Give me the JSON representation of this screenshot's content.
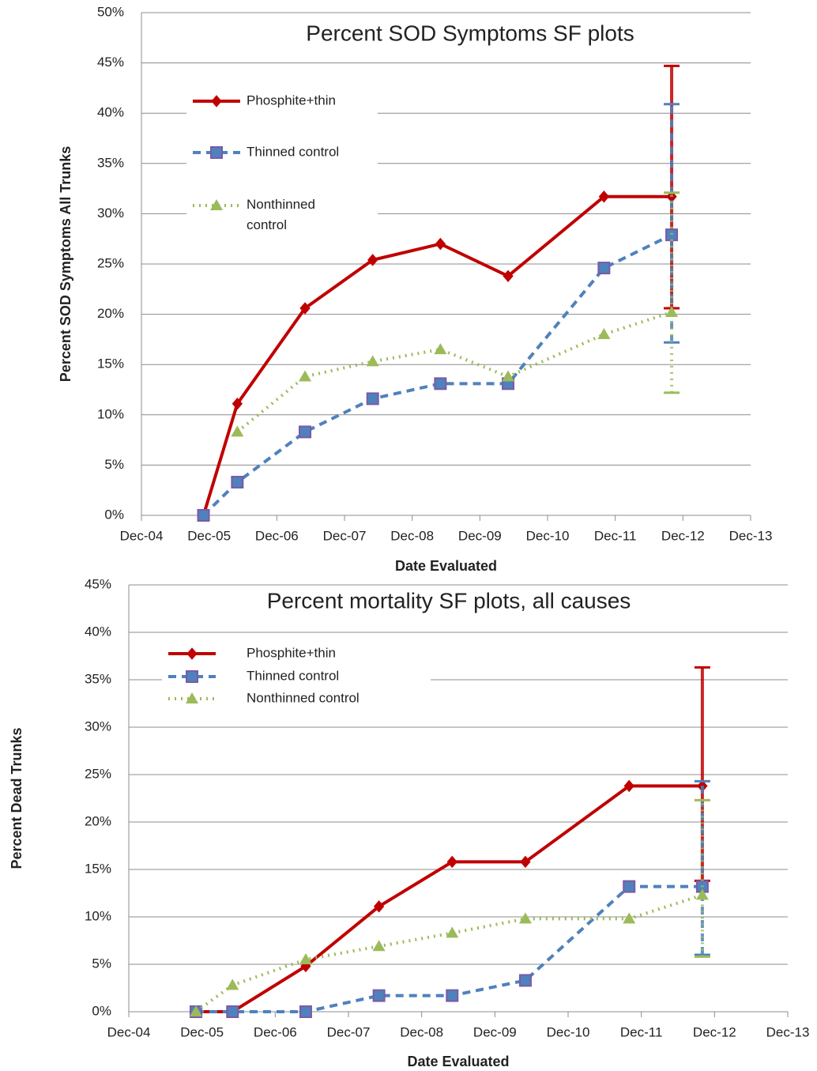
{
  "chart_data": [
    {
      "type": "line",
      "title": "Percent  SOD Symptoms SF plots",
      "x_label": "Date Evaluated",
      "y_label": "Percent SOD Symptoms  All Trunks",
      "x": [
        "2005-11",
        "2006-05",
        "2007-05",
        "2008-05",
        "2009-05",
        "2010-05",
        "2011-10",
        "2012-10"
      ],
      "series": [
        {
          "name": "Phosphite+thin",
          "color": "#c00000",
          "marker": "diamond",
          "dash": "solid",
          "values": [
            0,
            11.1,
            20.6,
            25.4,
            27.0,
            23.8,
            31.7,
            31.7
          ],
          "error_low": [
            null,
            null,
            null,
            null,
            null,
            null,
            null,
            20.6
          ],
          "error_high": [
            null,
            null,
            null,
            null,
            null,
            null,
            null,
            44.7
          ]
        },
        {
          "name": "Thinned control",
          "color": "#4f81bd",
          "marker": "square",
          "dash": "dash",
          "values": [
            0,
            3.3,
            8.3,
            11.6,
            13.1,
            13.1,
            24.6,
            27.9
          ],
          "error_low": [
            null,
            null,
            null,
            null,
            null,
            null,
            null,
            17.2
          ],
          "error_high": [
            null,
            null,
            null,
            null,
            null,
            null,
            null,
            40.9
          ]
        },
        {
          "name": "Nonthinned control",
          "color": "#9bbb59",
          "marker": "triangle",
          "dash": "dot",
          "values": [
            null,
            8.3,
            13.8,
            15.3,
            16.5,
            13.8,
            18.0,
            20.2
          ],
          "error_low": [
            null,
            null,
            null,
            null,
            null,
            null,
            null,
            12.2
          ],
          "error_high": [
            null,
            null,
            null,
            null,
            null,
            null,
            null,
            32.1
          ]
        }
      ],
      "xlim": [
        "2004-12",
        "2013-12"
      ],
      "xticks": [
        {
          "value": "2004-12",
          "label": "Dec-04"
        },
        {
          "value": "2005-12",
          "label": "Dec-05"
        },
        {
          "value": "2006-12",
          "label": "Dec-06"
        },
        {
          "value": "2007-12",
          "label": "Dec-07"
        },
        {
          "value": "2008-12",
          "label": "Dec-08"
        },
        {
          "value": "2009-12",
          "label": "Dec-09"
        },
        {
          "value": "2010-12",
          "label": "Dec-10"
        },
        {
          "value": "2011-12",
          "label": "Dec-11"
        },
        {
          "value": "2012-12",
          "label": "Dec-12"
        },
        {
          "value": "2013-12",
          "label": "Dec-13"
        }
      ],
      "ylim": [
        0,
        50
      ],
      "yticks": [
        {
          "value": 0,
          "label": "0%"
        },
        {
          "value": 5,
          "label": "5%"
        },
        {
          "value": 10,
          "label": "10%"
        },
        {
          "value": 15,
          "label": "15%"
        },
        {
          "value": 20,
          "label": "20%"
        },
        {
          "value": 25,
          "label": "25%"
        },
        {
          "value": 30,
          "label": "30%"
        },
        {
          "value": 35,
          "label": "35%"
        },
        {
          "value": 40,
          "label": "40%"
        },
        {
          "value": 45,
          "label": "45%"
        },
        {
          "value": 50,
          "label": "50%"
        }
      ],
      "grid": true,
      "legend": "upper left"
    },
    {
      "type": "line",
      "title": "Percent mortality SF plots, all causes",
      "x_label": "Date Evaluated",
      "y_label": "Percent Dead Trunks",
      "x": [
        "2005-11",
        "2006-05",
        "2007-05",
        "2008-05",
        "2009-05",
        "2010-05",
        "2011-10",
        "2012-10"
      ],
      "series": [
        {
          "name": "Phosphite+thin",
          "color": "#c00000",
          "marker": "diamond",
          "dash": "solid",
          "values": [
            0,
            0,
            4.8,
            11.1,
            15.8,
            15.8,
            23.8,
            23.8
          ],
          "error_low": [
            null,
            null,
            null,
            null,
            null,
            null,
            null,
            13.8
          ],
          "error_high": [
            null,
            null,
            null,
            null,
            null,
            null,
            null,
            36.3
          ]
        },
        {
          "name": "Thinned control",
          "color": "#4f81bd",
          "marker": "square",
          "dash": "dash",
          "values": [
            0,
            0,
            0,
            1.7,
            1.7,
            3.3,
            13.2,
            13.2
          ],
          "error_low": [
            null,
            null,
            null,
            null,
            null,
            null,
            null,
            6.0
          ],
          "error_high": [
            null,
            null,
            null,
            null,
            null,
            null,
            null,
            24.3
          ]
        },
        {
          "name": "Nonthinned control",
          "color": "#9bbb59",
          "marker": "triangle",
          "dash": "dot",
          "values": [
            0,
            2.8,
            5.5,
            6.9,
            8.3,
            9.8,
            9.8,
            12.3
          ],
          "error_low": [
            null,
            null,
            null,
            null,
            null,
            null,
            null,
            5.8
          ],
          "error_high": [
            null,
            null,
            null,
            null,
            null,
            null,
            null,
            22.3
          ]
        }
      ],
      "xlim": [
        "2004-12",
        "2013-12"
      ],
      "xticks": [
        {
          "value": "2004-12",
          "label": "Dec-04"
        },
        {
          "value": "2005-12",
          "label": "Dec-05"
        },
        {
          "value": "2006-12",
          "label": "Dec-06"
        },
        {
          "value": "2007-12",
          "label": "Dec-07"
        },
        {
          "value": "2008-12",
          "label": "Dec-08"
        },
        {
          "value": "2009-12",
          "label": "Dec-09"
        },
        {
          "value": "2010-12",
          "label": "Dec-10"
        },
        {
          "value": "2011-12",
          "label": "Dec-11"
        },
        {
          "value": "2012-12",
          "label": "Dec-12"
        },
        {
          "value": "2013-12",
          "label": "Dec-13"
        }
      ],
      "ylim": [
        0,
        45
      ],
      "yticks": [
        {
          "value": 0,
          "label": "0%"
        },
        {
          "value": 5,
          "label": "5%"
        },
        {
          "value": 10,
          "label": "10%"
        },
        {
          "value": 15,
          "label": "15%"
        },
        {
          "value": 20,
          "label": "20%"
        },
        {
          "value": 25,
          "label": "25%"
        },
        {
          "value": 30,
          "label": "30%"
        },
        {
          "value": 35,
          "label": "35%"
        },
        {
          "value": 40,
          "label": "40%"
        },
        {
          "value": 45,
          "label": "45%"
        }
      ],
      "grid": true,
      "legend": "upper left"
    }
  ]
}
